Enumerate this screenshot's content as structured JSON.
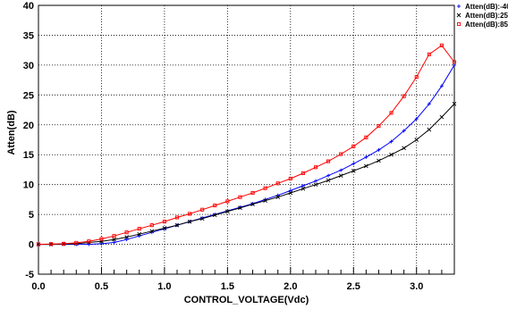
{
  "chart_data": {
    "type": "line",
    "xlabel": "CONTROL_VOLTAGE(Vdc)",
    "ylabel": "Atten(dB)",
    "xlim": [
      0,
      3.3
    ],
    "ylim": [
      -5,
      40
    ],
    "grid": true,
    "legend_position": "top-right outside",
    "x_ticks": [
      "0.0",
      "0.5",
      "1.0",
      "1.5",
      "2.0",
      "2.5",
      "3.0"
    ],
    "x_tick_values": [
      0,
      0.5,
      1.0,
      1.5,
      2.0,
      2.5,
      3.0
    ],
    "y_ticks": [
      "-5",
      "0",
      "5",
      "10",
      "15",
      "20",
      "25",
      "30",
      "35",
      "40"
    ],
    "y_tick_values": [
      -5,
      0,
      5,
      10,
      15,
      20,
      25,
      30,
      35,
      40
    ],
    "series": [
      {
        "name": "Atten(dB):-40",
        "color": "#0000ff",
        "marker": "+",
        "x": [
          0,
          0.1,
          0.2,
          0.3,
          0.4,
          0.5,
          0.6,
          0.7,
          0.8,
          0.9,
          1.0,
          1.1,
          1.2,
          1.3,
          1.4,
          1.5,
          1.6,
          1.7,
          1.8,
          1.9,
          2.0,
          2.1,
          2.2,
          2.3,
          2.4,
          2.5,
          2.6,
          2.7,
          2.8,
          2.9,
          3.0,
          3.1,
          3.2,
          3.3
        ],
        "y": [
          0.0,
          0.0,
          0.0,
          0.0,
          0.0,
          0.1,
          0.3,
          0.8,
          1.4,
          2.0,
          2.6,
          3.2,
          3.8,
          4.4,
          5.0,
          5.6,
          6.2,
          6.8,
          7.5,
          8.2,
          9.0,
          9.8,
          10.6,
          11.5,
          12.4,
          13.5,
          14.6,
          15.8,
          17.2,
          19.0,
          21.0,
          23.5,
          26.5,
          30.0
        ]
      },
      {
        "name": "Atten(dB):25",
        "color": "#000000",
        "marker": "x",
        "x": [
          0,
          0.1,
          0.2,
          0.3,
          0.4,
          0.5,
          0.6,
          0.7,
          0.8,
          0.9,
          1.0,
          1.1,
          1.2,
          1.3,
          1.4,
          1.5,
          1.6,
          1.7,
          1.8,
          1.9,
          2.0,
          2.1,
          2.2,
          2.3,
          2.4,
          2.5,
          2.6,
          2.7,
          2.8,
          2.9,
          3.0,
          3.1,
          3.2,
          3.3
        ],
        "y": [
          0.0,
          0.0,
          0.05,
          0.1,
          0.3,
          0.5,
          0.8,
          1.2,
          1.7,
          2.2,
          2.7,
          3.2,
          3.8,
          4.3,
          4.9,
          5.5,
          6.1,
          6.7,
          7.3,
          7.9,
          8.6,
          9.3,
          10.0,
          10.7,
          11.5,
          12.3,
          13.1,
          14.0,
          15.0,
          16.1,
          17.5,
          19.2,
          21.3,
          23.5
        ]
      },
      {
        "name": "Atten(dB):85",
        "color": "#ff0000",
        "marker": "square",
        "x": [
          0,
          0.1,
          0.2,
          0.3,
          0.4,
          0.5,
          0.6,
          0.7,
          0.8,
          0.9,
          1.0,
          1.1,
          1.2,
          1.3,
          1.4,
          1.5,
          1.6,
          1.7,
          1.8,
          1.9,
          2.0,
          2.1,
          2.2,
          2.3,
          2.4,
          2.5,
          2.6,
          2.7,
          2.8,
          2.9,
          3.0,
          3.1,
          3.2,
          3.3
        ],
        "y": [
          0.0,
          0.05,
          0.1,
          0.25,
          0.5,
          0.9,
          1.4,
          2.0,
          2.6,
          3.2,
          3.8,
          4.5,
          5.1,
          5.8,
          6.5,
          7.2,
          7.9,
          8.6,
          9.4,
          10.2,
          11.0,
          11.9,
          12.9,
          13.9,
          15.1,
          16.4,
          17.9,
          19.8,
          22.0,
          24.8,
          28.0,
          31.8,
          33.3,
          30.5
        ]
      }
    ]
  }
}
